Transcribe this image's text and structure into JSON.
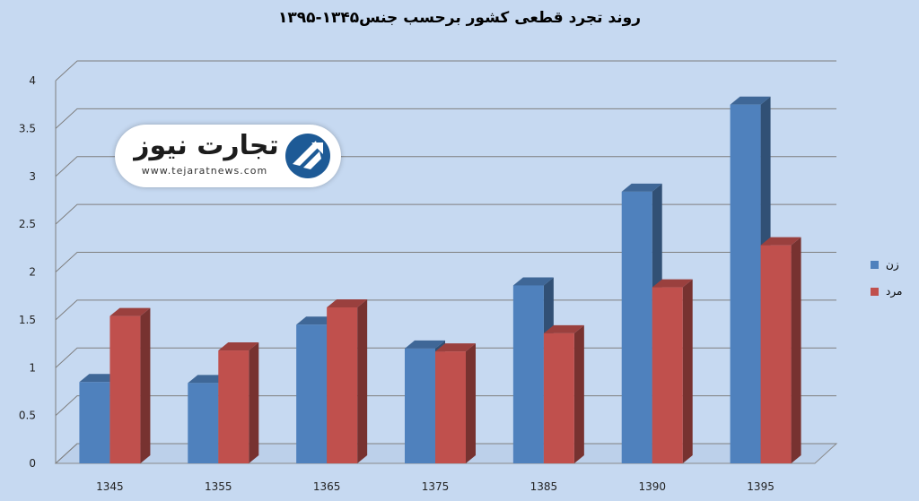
{
  "chart_data": {
    "type": "bar",
    "title": "روند تجرد قطعی کشور برحسب جنس۱۳۴۵-۱۳۹۵",
    "categories": [
      "1345",
      "1355",
      "1365",
      "1375",
      "1385",
      "1390",
      "1395"
    ],
    "series": [
      {
        "name": "زن",
        "values": [
          0.85,
          0.84,
          1.45,
          1.2,
          1.86,
          2.84,
          3.75
        ],
        "color": "#4f81bd"
      },
      {
        "name": "مرد",
        "values": [
          1.54,
          1.18,
          1.63,
          1.17,
          1.36,
          1.84,
          2.28
        ],
        "color": "#c0504d"
      }
    ],
    "ylim": [
      0,
      4
    ],
    "yticks": [
      "0",
      "0.5",
      "1",
      "1.5",
      "2",
      "2.5",
      "3",
      "3.5",
      "4"
    ],
    "grid": true,
    "legend": "right"
  },
  "logo": {
    "name": "تجارت نیوز",
    "url": "www.tejaratnews.com"
  }
}
